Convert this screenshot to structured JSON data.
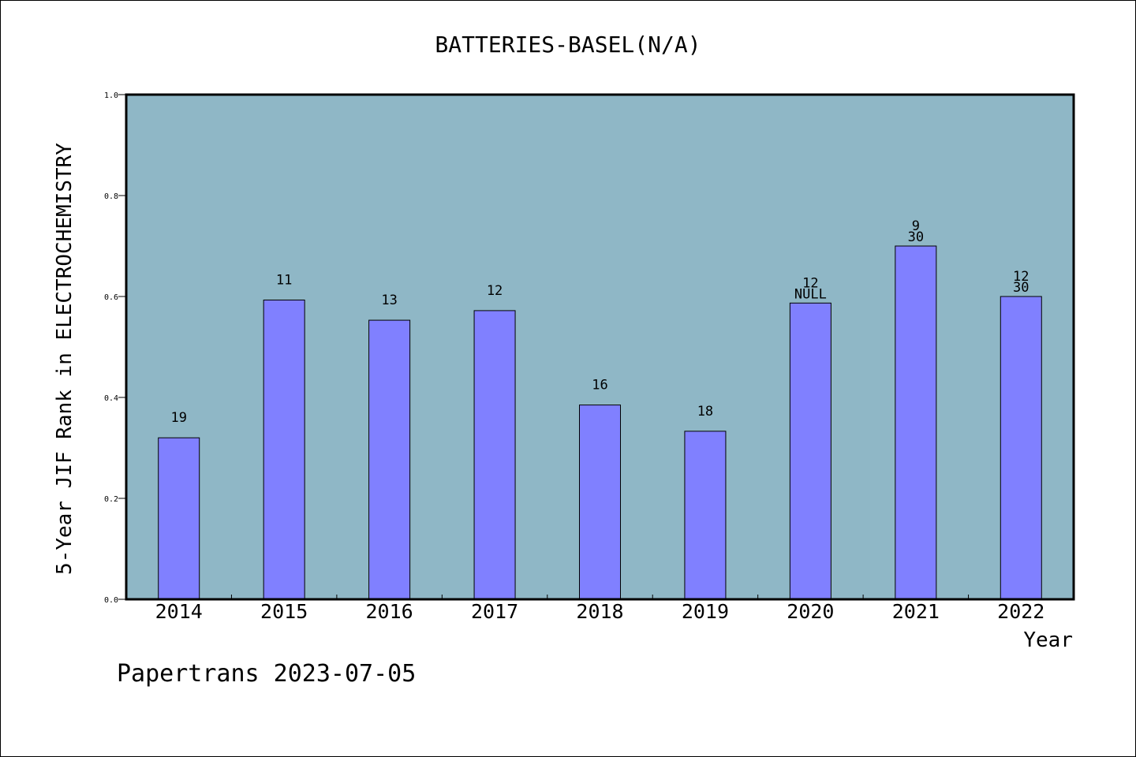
{
  "chart_data": {
    "type": "bar",
    "title": "BATTERIES-BASEL(N/A)",
    "xlabel": "Year",
    "ylabel": "5-Year JIF Rank in ELECTROCHEMISTRY",
    "ylim": [
      0,
      1.0
    ],
    "yticks": [
      "0.0",
      "0.2",
      "0.4",
      "0.6",
      "0.8",
      "1.0"
    ],
    "categories": [
      "2014",
      "2015",
      "2016",
      "2017",
      "2018",
      "2019",
      "2020",
      "2021",
      "2022"
    ],
    "values": [
      0.32,
      0.593,
      0.553,
      0.572,
      0.385,
      0.333,
      0.587,
      0.7,
      0.6
    ],
    "labels_upper": [
      "",
      "",
      "",
      "",
      "",
      "",
      "12",
      "9",
      "12"
    ],
    "labels_lower": [
      "19",
      "11",
      "13",
      "12",
      "16",
      "18",
      "NULL",
      "30",
      "30"
    ],
    "grid": false,
    "colors": {
      "plot_background": "#8fb7c6",
      "bar": "#8080ff",
      "bar_edge": "#000000"
    }
  },
  "footer": {
    "text": "Papertrans 2023-07-05"
  }
}
